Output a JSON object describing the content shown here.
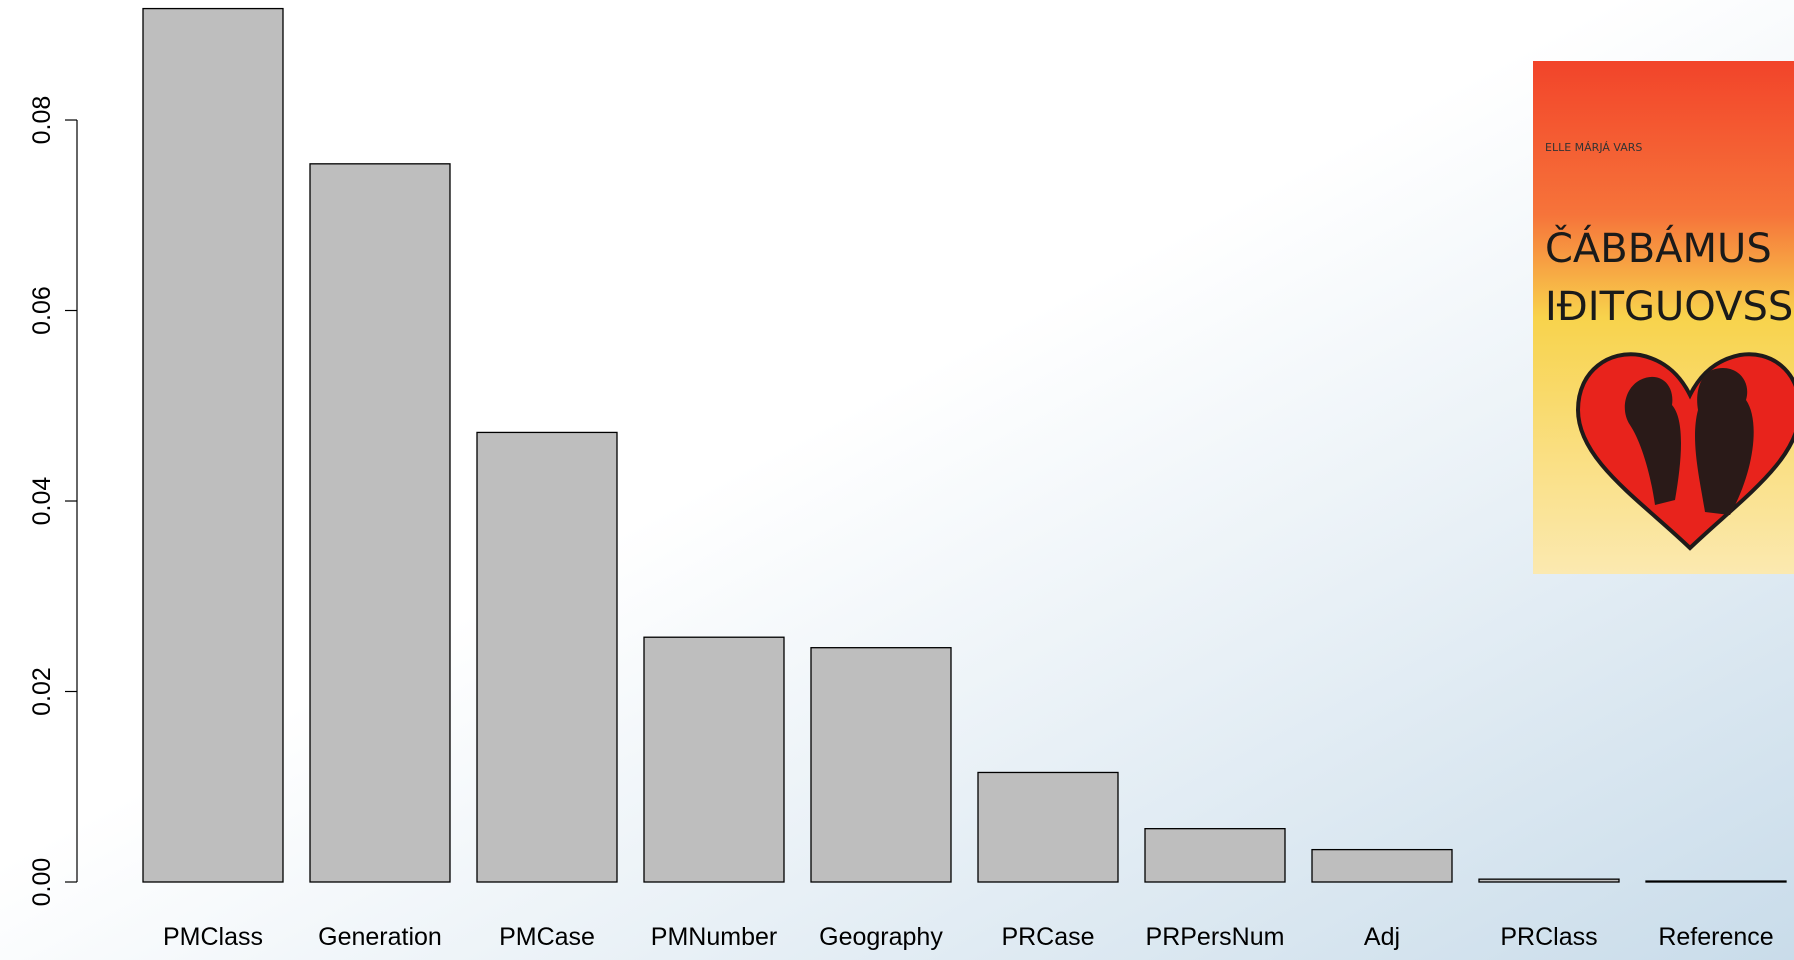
{
  "chart_data": {
    "type": "bar",
    "categories": [
      "PMClass",
      "Generation",
      "PMCase",
      "PMNumber",
      "Geography",
      "PRCase",
      "PRPersNum",
      "Adj",
      "PRClass",
      "Reference"
    ],
    "values": [
      0.0917,
      0.0754,
      0.0472,
      0.0257,
      0.0246,
      0.0115,
      0.0056,
      0.0034,
      0.0003,
      0.0001
    ],
    "color": "#bebebe",
    "ylim": [
      0,
      0.0926
    ],
    "yticks": [
      {
        "value": 0,
        "label": "0.00"
      },
      {
        "value": 0.02,
        "label": "0.02"
      },
      {
        "value": 0.04,
        "label": "0.04"
      },
      {
        "value": 0.06,
        "label": "0.06"
      },
      {
        "value": 0.08,
        "label": "0.08"
      }
    ],
    "grid": false
  },
  "cover": {
    "author": "ELLE MÁRJÁ VARS",
    "title_lines": [
      "ČÁBBÁMUS",
      "IÐITGUOVSSU"
    ]
  }
}
